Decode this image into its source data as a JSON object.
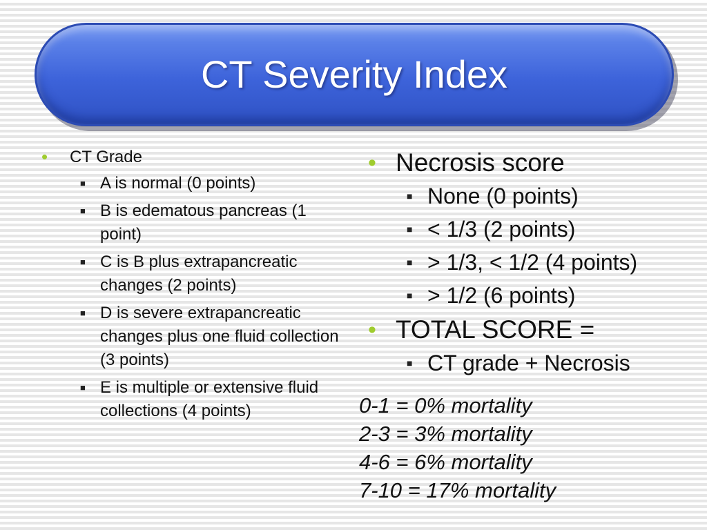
{
  "title": "CT Severity Index",
  "colors": {
    "banner": "#3d63da",
    "bullet": "#9fcc2e",
    "background_stripe": "#e6e6e6"
  },
  "left": {
    "heading": "CT Grade",
    "items": [
      "A is normal  (0 points)",
      "B is edematous pancreas (1 point)",
      "C is B plus extrapancreatic changes (2 points)",
      "D is severe extrapancreatic changes plus one fluid collection (3 points)",
      "E is multiple or extensive fluid collections (4 points)"
    ]
  },
  "right": {
    "necrosis_heading": "Necrosis score",
    "necrosis_items": [
      "None (0 points)",
      "< 1/3 (2 points)",
      "> 1/3, < 1/2 (4 points)",
      "> 1/2 (6 points)"
    ],
    "total_heading": "TOTAL SCORE =",
    "total_item": "CT grade + Necrosis"
  },
  "mortality": [
    "0-1 = 0% mortality",
    "2-3 = 3% mortality",
    "4-6 = 6% mortality",
    "7-10 = 17% mortality"
  ]
}
